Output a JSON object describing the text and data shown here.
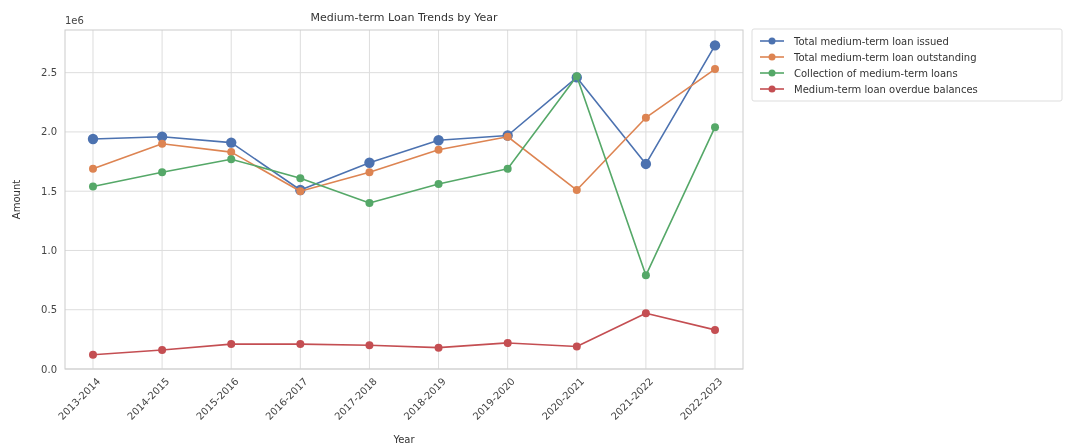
{
  "chart_data": {
    "type": "line",
    "title": "Medium-term Loan Trends by Year",
    "xlabel": "Year",
    "ylabel": "Amount",
    "annotations": [
      "1e6"
    ],
    "categories": [
      "2013-2014",
      "2014-2015",
      "2015-2016",
      "2016-2017",
      "2017-2018",
      "2018-2019",
      "2019-2020",
      "2020-2021",
      "2021-2022",
      "2022-2023"
    ],
    "series": [
      {
        "name": "Total medium-term loan issued",
        "color": "#4c72b0",
        "values": [
          1.94,
          1.96,
          1.91,
          1.51,
          1.74,
          1.93,
          1.97,
          2.46,
          1.73,
          2.73
        ]
      },
      {
        "name": "Total medium-term loan outstanding",
        "color": "#dd8452",
        "values": [
          1.69,
          1.9,
          1.83,
          1.5,
          1.66,
          1.85,
          1.96,
          1.51,
          2.12,
          2.53
        ]
      },
      {
        "name": "Collection of medium-term loans",
        "color": "#55a868",
        "values": [
          1.54,
          1.66,
          1.77,
          1.61,
          1.4,
          1.56,
          1.69,
          2.47,
          0.79,
          2.04
        ]
      },
      {
        "name": "Medium-term loan overdue balances",
        "color": "#c44e52",
        "values": [
          0.12,
          0.16,
          0.21,
          0.21,
          0.2,
          0.18,
          0.22,
          0.19,
          0.47,
          0.33
        ]
      }
    ],
    "ylim": [
      0,
      2.86
    ],
    "yticks": [
      {
        "value": 0,
        "label": "0.0"
      },
      {
        "value": 0.5,
        "label": "0.5"
      },
      {
        "value": 1,
        "label": "1.0"
      },
      {
        "value": 1.5,
        "label": "1.5"
      },
      {
        "value": 2,
        "label": "2.0"
      },
      {
        "value": 2.5,
        "label": "2.5"
      }
    ],
    "grid": true,
    "legend": "top right",
    "marker": "circle",
    "line_style": "solid"
  }
}
